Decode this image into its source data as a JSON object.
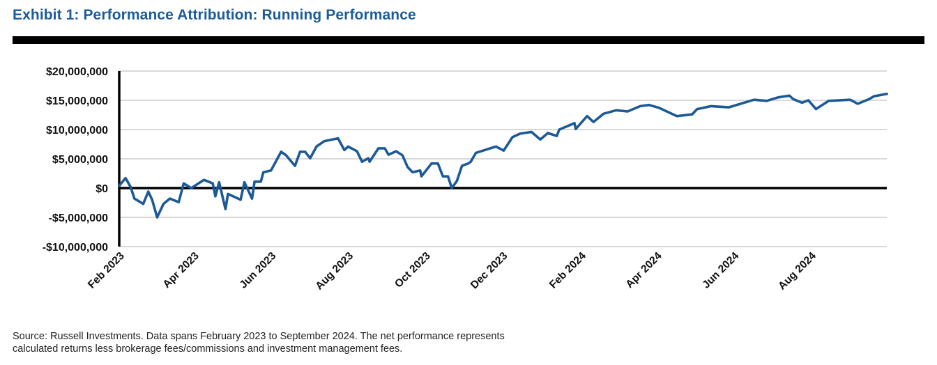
{
  "header": {
    "title": "Exhibit 1: Performance Attribution: Running Performance"
  },
  "footnote": {
    "lines": [
      "Source: Russell Investments. Data spans February 2023 to September 2024. The net performance represents",
      "calculated returns less brokerage fees/commissions and investment management fees."
    ]
  },
  "colors": {
    "line": "#1c5a97",
    "title": "#1b5c99",
    "grid": "#d9d9d9",
    "axis": "#000000"
  },
  "chart_data": {
    "type": "line",
    "title": "",
    "xlabel": "",
    "ylabel": "",
    "ylim": [
      -10000000,
      20000000
    ],
    "xlim": [
      "2023-02-01",
      "2024-09-30"
    ],
    "grid": true,
    "y_ticks": [
      -10000000,
      -5000000,
      0,
      5000000,
      10000000,
      15000000,
      20000000
    ],
    "y_tick_labels": [
      "-$10,000,000",
      "-$5,000,000",
      "$0",
      "$5,000,000",
      "$10,000,000",
      "$15,000,000",
      "$20,000,000"
    ],
    "x_ticks": [
      "2023-02-01",
      "2023-04-01",
      "2023-06-01",
      "2023-08-01",
      "2023-10-01",
      "2023-12-01",
      "2024-02-01",
      "2024-04-01",
      "2024-06-01",
      "2024-08-01"
    ],
    "x_tick_labels": [
      "Feb 2023",
      "Apr 2023",
      "Jun 2023",
      "Aug 2023",
      "Oct 2023",
      "Dec 2023",
      "Feb 2024",
      "Apr 2024",
      "Jun 2024",
      "Aug 2024"
    ],
    "series": [
      {
        "x": [
          "2023-02-01",
          "2023-02-06",
          "2023-02-10",
          "2023-02-13",
          "2023-02-20",
          "2023-02-24",
          "2023-02-27",
          "2023-03-03",
          "2023-03-08",
          "2023-03-13",
          "2023-03-20",
          "2023-03-24",
          "2023-03-30",
          "2023-04-09",
          "2023-04-16",
          "2023-04-18",
          "2023-04-21",
          "2023-04-26",
          "2023-04-28",
          "2023-05-08",
          "2023-05-11",
          "2023-05-17",
          "2023-05-19",
          "2023-05-24",
          "2023-05-26",
          "2023-06-01",
          "2023-06-09",
          "2023-06-13",
          "2023-06-20",
          "2023-06-24",
          "2023-06-28",
          "2023-07-02",
          "2023-07-07",
          "2023-07-13",
          "2023-07-24",
          "2023-07-29",
          "2023-08-01",
          "2023-08-08",
          "2023-08-12",
          "2023-08-17",
          "2023-08-18",
          "2023-08-25",
          "2023-08-30",
          "2023-09-02",
          "2023-09-08",
          "2023-09-13",
          "2023-09-17",
          "2023-09-21",
          "2023-09-27",
          "2023-09-28",
          "2023-10-06",
          "2023-10-11",
          "2023-10-15",
          "2023-10-19",
          "2023-10-22",
          "2023-10-26",
          "2023-10-30",
          "2023-11-04",
          "2023-11-06",
          "2023-11-10",
          "2023-11-17",
          "2023-11-26",
          "2023-12-02",
          "2023-12-09",
          "2023-12-15",
          "2023-12-24",
          "2023-12-31",
          "2024-01-06",
          "2024-01-13",
          "2024-01-15",
          "2024-01-27",
          "2024-01-28",
          "2024-02-06",
          "2024-02-11",
          "2024-02-19",
          "2024-02-29",
          "2024-03-09",
          "2024-03-19",
          "2024-03-26",
          "2024-04-03",
          "2024-04-17",
          "2024-04-29",
          "2024-05-03",
          "2024-05-14",
          "2024-05-28",
          "2024-06-17",
          "2024-06-27",
          "2024-07-06",
          "2024-07-15",
          "2024-07-18",
          "2024-07-25",
          "2024-07-30",
          "2024-08-05",
          "2024-08-15",
          "2024-09-01",
          "2024-09-07",
          "2024-09-16",
          "2024-09-20",
          "2024-09-30"
        ],
        "y": [
          400000,
          1700000,
          200000,
          -1800000,
          -2700000,
          -600000,
          -2000000,
          -5000000,
          -2700000,
          -1800000,
          -2400000,
          800000,
          0,
          1400000,
          800000,
          -1400000,
          1000000,
          -3600000,
          -1000000,
          -2000000,
          1000000,
          -1800000,
          1100000,
          1100000,
          2700000,
          3000000,
          6200000,
          5600000,
          3800000,
          6200000,
          6200000,
          5100000,
          7100000,
          8000000,
          8500000,
          6500000,
          7100000,
          6300000,
          4500000,
          5100000,
          4500000,
          6800000,
          6800000,
          5700000,
          6300000,
          5600000,
          3600000,
          2700000,
          3000000,
          2000000,
          4200000,
          4200000,
          2000000,
          2000000,
          0,
          1200000,
          3800000,
          4200000,
          4500000,
          6000000,
          6500000,
          7100000,
          6400000,
          8700000,
          9300000,
          9600000,
          8300000,
          9400000,
          8900000,
          10000000,
          11100000,
          10100000,
          12300000,
          11300000,
          12700000,
          13300000,
          13100000,
          14000000,
          14200000,
          13700000,
          12300000,
          12600000,
          13500000,
          14000000,
          13800000,
          15100000,
          14900000,
          15500000,
          15800000,
          15200000,
          14600000,
          15000000,
          13500000,
          14900000,
          15100000,
          14400000,
          15200000,
          15700000,
          16100000
        ]
      }
    ]
  }
}
